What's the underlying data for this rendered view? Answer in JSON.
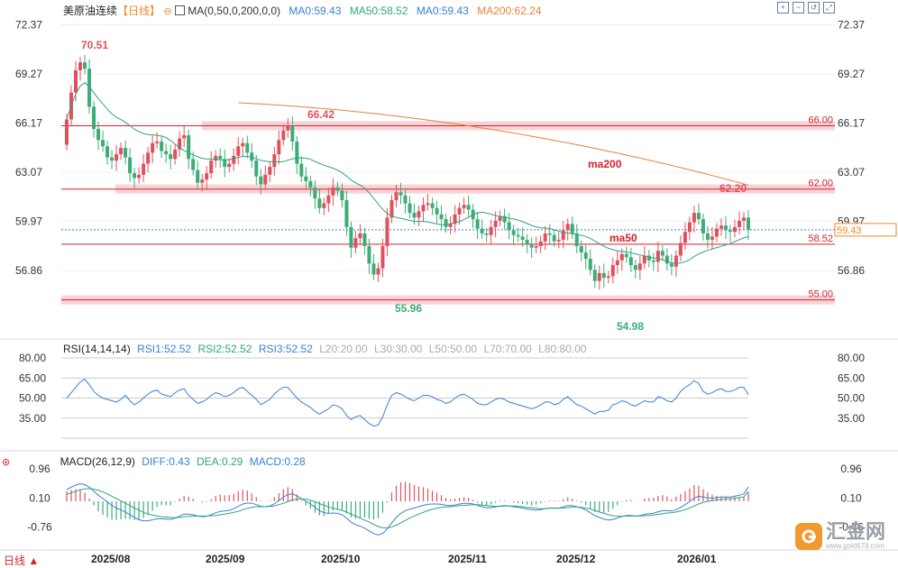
{
  "header": {
    "symbol": "美原油连续",
    "period": "【日线】",
    "ma_params": "MA(0,50,0,200,0,0)",
    "ma_a": "MA0:59.43",
    "ma50": "MA50:58.52",
    "ma_b": "MA0:59.43",
    "ma200": "MA200:62.24"
  },
  "rsi_header": {
    "title": "RSI(14,14,14)",
    "rsi1": "RSI1:52.52",
    "rsi2": "RSI2:52.52",
    "rsi3": "RSI3:52.52",
    "l20": "L20:20.00",
    "l30": "L30:30.00",
    "l50": "L50:50.00",
    "l70": "L70:70.00",
    "l80": "L80:80.00"
  },
  "macd_header": {
    "title": "MACD(26,12,9)",
    "diff": "DIFF:0.43",
    "dea": "DEA:0.29",
    "macd": "MACD:0.28"
  },
  "footer": {
    "period_label": "日线 ▲"
  },
  "toolbar": {
    "icons": [
      "zoom-in-icon",
      "zoom-out-icon",
      "restore-icon",
      "fullscreen-icon"
    ]
  },
  "watermark": {
    "name": "汇金网",
    "url": "www.gold678.com"
  },
  "colors": {
    "up": "#e0515d",
    "down": "#3dac78",
    "ma50": "#2ea57d",
    "ma200": "#e6823a",
    "level": "#d81e2a",
    "band": "#f6c9cc",
    "rsi": "#3b7fd6",
    "diff": "#3b7fd6",
    "dea": "#2ea57d",
    "axis_text": "#333333"
  },
  "chart_data": [
    {
      "type": "candlestick",
      "title": "美原油连续",
      "period": "日线",
      "y_ticks": [
        "72.37",
        "69.27",
        "66.17",
        "63.07",
        "59.97",
        "56.86"
      ],
      "ylim": [
        53.9,
        72.8
      ],
      "x_ticks": [
        "2025/08",
        "2025/09",
        "2025/10",
        "2025/11",
        "2025/12",
        "2026/01"
      ],
      "closes": [
        66.4,
        68.1,
        69.5,
        70.0,
        69.6,
        67.2,
        65.8,
        65.1,
        64.7,
        64.0,
        63.8,
        64.2,
        64.6,
        64.0,
        63.0,
        62.7,
        62.9,
        63.6,
        64.3,
        64.9,
        65.0,
        64.4,
        64.2,
        63.9,
        64.5,
        65.2,
        65.4,
        63.9,
        63.2,
        62.4,
        62.6,
        63.0,
        63.8,
        64.1,
        63.9,
        63.4,
        63.6,
        64.1,
        64.7,
        64.9,
        64.3,
        63.8,
        62.8,
        62.3,
        62.9,
        63.4,
        64.2,
        65.1,
        65.7,
        66.0,
        65.0,
        63.6,
        62.8,
        62.5,
        62.1,
        61.4,
        60.8,
        61.1,
        61.6,
        62.1,
        61.9,
        61.3,
        59.6,
        58.3,
        58.9,
        59.2,
        58.4,
        57.3,
        56.6,
        57.0,
        58.4,
        60.2,
        61.3,
        61.8,
        61.6,
        61.1,
        60.5,
        60.2,
        60.6,
        61.0,
        61.1,
        60.8,
        60.4,
        60.1,
        59.6,
        59.8,
        60.4,
        60.8,
        61.0,
        60.7,
        60.1,
        59.5,
        59.2,
        59.1,
        59.6,
        60.0,
        60.3,
        59.9,
        59.4,
        59.1,
        59.0,
        58.8,
        58.5,
        58.3,
        58.4,
        58.7,
        59.2,
        59.1,
        58.7,
        58.8,
        59.4,
        59.8,
        59.2,
        58.4,
        58.0,
        57.6,
        56.9,
        56.2,
        56.7,
        56.4,
        56.5,
        57.2,
        57.5,
        57.9,
        57.7,
        57.2,
        56.9,
        57.3,
        57.8,
        57.5,
        57.4,
        58.1,
        57.8,
        57.3,
        57.1,
        57.8,
        58.6,
        59.3,
        59.9,
        60.5,
        60.1,
        59.2,
        58.8,
        59.0,
        59.5,
        59.7,
        59.4,
        59.3,
        59.6,
        60.0,
        60.2,
        59.43
      ],
      "annotations": {
        "high_label": "70.51",
        "peak_label": "66.42",
        "low_label": "55.96",
        "low2_label": "54.98",
        "recent_high_label": "62.20",
        "ma200_label": "ma200",
        "ma50_label": "ma50"
      },
      "levels": [
        {
          "value": 66.0,
          "label": "66.00"
        },
        {
          "value": 62.0,
          "label": "62.00"
        },
        {
          "value": 58.52,
          "label": "58.52"
        },
        {
          "value": 55.0,
          "label": "55.00"
        }
      ],
      "last_price": {
        "value": 59.43,
        "label": "59.43"
      },
      "series": [
        {
          "name": "MA50",
          "last": 58.52
        },
        {
          "name": "MA200",
          "last": 62.24
        }
      ]
    },
    {
      "type": "line",
      "title": "RSI(14,14,14)",
      "y_ticks": [
        "80.00",
        "65.00",
        "50.00",
        "35.00"
      ],
      "ylim": [
        20,
        80
      ],
      "reference_lines": [
        80,
        65,
        50,
        35,
        20
      ],
      "series": [
        {
          "name": "RSI1",
          "values": [
            50,
            54,
            58,
            62,
            64,
            60,
            55,
            52,
            50,
            49,
            48,
            47,
            49,
            52,
            48,
            45,
            47,
            50,
            53,
            55,
            56,
            53,
            52,
            51,
            54,
            56,
            57,
            52,
            49,
            46,
            47,
            49,
            52,
            54,
            53,
            51,
            52,
            54,
            57,
            58,
            55,
            52,
            49,
            45,
            47,
            49,
            53,
            56,
            58,
            58,
            54,
            50,
            47,
            45,
            43,
            40,
            38,
            40,
            42,
            45,
            44,
            42,
            37,
            34,
            36,
            37,
            34,
            31,
            29,
            30,
            36,
            45,
            52,
            54,
            53,
            51,
            49,
            48,
            50,
            52,
            52,
            51,
            49,
            48,
            46,
            47,
            50,
            52,
            53,
            51,
            49,
            46,
            45,
            45,
            47,
            49,
            50,
            49,
            47,
            46,
            45,
            44,
            43,
            42,
            43,
            45,
            47,
            47,
            45,
            46,
            49,
            51,
            48,
            45,
            44,
            42,
            40,
            38,
            40,
            40,
            41,
            45,
            46,
            48,
            47,
            45,
            44,
            46,
            48,
            47,
            47,
            51,
            50,
            48,
            47,
            50,
            55,
            58,
            60,
            63,
            61,
            55,
            53,
            54,
            56,
            57,
            55,
            55,
            56,
            58,
            58,
            52.52
          ]
        }
      ]
    },
    {
      "type": "bar+line",
      "title": "MACD(26,12,9)",
      "y_ticks": [
        "0.96",
        "0.10",
        "-0.76"
      ],
      "ylim": [
        -1.1,
        1.1
      ],
      "series": [
        {
          "name": "DIFF",
          "values": [
            0.35,
            0.42,
            0.48,
            0.52,
            0.5,
            0.42,
            0.3,
            0.18,
            0.08,
            -0.02,
            -0.12,
            -0.2,
            -0.26,
            -0.32,
            -0.4,
            -0.48,
            -0.55,
            -0.58,
            -0.58,
            -0.55,
            -0.52,
            -0.52,
            -0.53,
            -0.54,
            -0.5,
            -0.44,
            -0.38,
            -0.38,
            -0.4,
            -0.44,
            -0.46,
            -0.45,
            -0.4,
            -0.34,
            -0.3,
            -0.29,
            -0.27,
            -0.22,
            -0.15,
            -0.08,
            -0.05,
            -0.06,
            -0.1,
            -0.15,
            -0.16,
            -0.14,
            -0.08,
            0.02,
            0.12,
            0.2,
            0.22,
            0.16,
            0.08,
            0.0,
            -0.08,
            -0.18,
            -0.28,
            -0.34,
            -0.36,
            -0.35,
            -0.36,
            -0.4,
            -0.5,
            -0.62,
            -0.7,
            -0.74,
            -0.8,
            -0.88,
            -0.96,
            -1.0,
            -0.96,
            -0.82,
            -0.64,
            -0.48,
            -0.36,
            -0.28,
            -0.23,
            -0.2,
            -0.16,
            -0.12,
            -0.09,
            -0.08,
            -0.08,
            -0.09,
            -0.12,
            -0.13,
            -0.11,
            -0.08,
            -0.06,
            -0.06,
            -0.08,
            -0.12,
            -0.16,
            -0.19,
            -0.19,
            -0.17,
            -0.14,
            -0.13,
            -0.14,
            -0.16,
            -0.18,
            -0.2,
            -0.23,
            -0.25,
            -0.26,
            -0.25,
            -0.22,
            -0.2,
            -0.2,
            -0.2,
            -0.17,
            -0.13,
            -0.13,
            -0.16,
            -0.2,
            -0.26,
            -0.34,
            -0.43,
            -0.48,
            -0.53,
            -0.56,
            -0.54,
            -0.5,
            -0.45,
            -0.42,
            -0.42,
            -0.44,
            -0.43,
            -0.39,
            -0.37,
            -0.36,
            -0.31,
            -0.28,
            -0.28,
            -0.29,
            -0.25,
            -0.18,
            -0.1,
            -0.01,
            0.1,
            0.15,
            0.13,
            0.1,
            0.09,
            0.11,
            0.13,
            0.13,
            0.13,
            0.15,
            0.18,
            0.22,
            0.43
          ]
        },
        {
          "name": "DEA",
          "values": [
            0.2,
            0.25,
            0.3,
            0.34,
            0.37,
            0.38,
            0.36,
            0.33,
            0.28,
            0.22,
            0.15,
            0.08,
            0.01,
            -0.06,
            -0.13,
            -0.2,
            -0.27,
            -0.33,
            -0.38,
            -0.41,
            -0.44,
            -0.46,
            -0.47,
            -0.48,
            -0.49,
            -0.48,
            -0.46,
            -0.45,
            -0.44,
            -0.44,
            -0.44,
            -0.44,
            -0.43,
            -0.42,
            -0.4,
            -0.38,
            -0.36,
            -0.33,
            -0.3,
            -0.25,
            -0.21,
            -0.18,
            -0.16,
            -0.16,
            -0.16,
            -0.15,
            -0.14,
            -0.1,
            -0.06,
            -0.01,
            0.04,
            0.06,
            0.07,
            0.06,
            0.03,
            -0.01,
            -0.07,
            -0.12,
            -0.17,
            -0.21,
            -0.24,
            -0.27,
            -0.32,
            -0.38,
            -0.44,
            -0.5,
            -0.56,
            -0.62,
            -0.69,
            -0.75,
            -0.79,
            -0.8,
            -0.77,
            -0.71,
            -0.64,
            -0.57,
            -0.5,
            -0.44,
            -0.38,
            -0.33,
            -0.28,
            -0.24,
            -0.21,
            -0.18,
            -0.17,
            -0.16,
            -0.15,
            -0.13,
            -0.12,
            -0.11,
            -0.1,
            -0.1,
            -0.11,
            -0.13,
            -0.14,
            -0.15,
            -0.15,
            -0.14,
            -0.14,
            -0.14,
            -0.15,
            -0.16,
            -0.18,
            -0.19,
            -0.21,
            -0.22,
            -0.22,
            -0.21,
            -0.21,
            -0.21,
            -0.2,
            -0.19,
            -0.17,
            -0.17,
            -0.18,
            -0.2,
            -0.23,
            -0.27,
            -0.32,
            -0.36,
            -0.4,
            -0.43,
            -0.44,
            -0.45,
            -0.44,
            -0.44,
            -0.44,
            -0.44,
            -0.43,
            -0.42,
            -0.41,
            -0.39,
            -0.37,
            -0.35,
            -0.34,
            -0.32,
            -0.29,
            -0.25,
            -0.2,
            -0.14,
            -0.08,
            -0.03,
            0.0,
            0.02,
            0.04,
            0.05,
            0.07,
            0.08,
            0.09,
            0.11,
            0.13,
            0.29
          ]
        },
        {
          "name": "MACD",
          "values": [
            0.3,
            0.34,
            0.36,
            0.36,
            0.26,
            0.08,
            -0.12,
            -0.3,
            -0.4,
            -0.48,
            -0.54,
            -0.56,
            -0.54,
            -0.52,
            -0.54,
            -0.56,
            -0.56,
            -0.5,
            -0.4,
            -0.28,
            -0.16,
            -0.12,
            -0.12,
            -0.12,
            -0.02,
            0.08,
            0.16,
            0.14,
            0.08,
            0.0,
            -0.04,
            -0.02,
            0.06,
            0.16,
            0.2,
            0.18,
            0.18,
            0.22,
            0.3,
            0.34,
            0.32,
            0.24,
            0.12,
            0.02,
            0.0,
            0.02,
            0.12,
            0.24,
            0.36,
            0.42,
            0.36,
            0.2,
            0.02,
            -0.12,
            -0.22,
            -0.34,
            -0.42,
            -0.44,
            -0.38,
            -0.28,
            -0.24,
            -0.26,
            -0.36,
            -0.48,
            -0.52,
            -0.48,
            -0.48,
            -0.52,
            -0.54,
            -0.5,
            -0.34,
            -0.04,
            0.26,
            0.46,
            0.56,
            0.58,
            0.54,
            0.48,
            0.44,
            0.42,
            0.38,
            0.32,
            0.26,
            0.18,
            0.1,
            0.06,
            0.08,
            0.1,
            0.12,
            0.1,
            0.04,
            -0.04,
            -0.1,
            -0.12,
            -0.1,
            -0.04,
            0.02,
            0.02,
            0.0,
            -0.04,
            -0.06,
            -0.08,
            -0.1,
            -0.12,
            -0.1,
            -0.06,
            -0.02,
            0.02,
            0.02,
            0.02,
            0.06,
            0.12,
            0.08,
            0.02,
            -0.04,
            -0.12,
            -0.22,
            -0.32,
            -0.32,
            -0.34,
            -0.32,
            -0.22,
            -0.12,
            -0.02,
            0.04,
            0.04,
            0.0,
            0.0,
            0.08,
            0.1,
            0.1,
            0.16,
            0.18,
            0.14,
            0.06,
            0.14,
            0.22,
            0.3,
            0.38,
            0.48,
            0.46,
            0.36,
            0.26,
            0.2,
            0.16,
            0.14,
            0.12,
            0.1,
            0.12,
            0.12,
            0.12,
            0.28
          ]
        }
      ]
    }
  ]
}
